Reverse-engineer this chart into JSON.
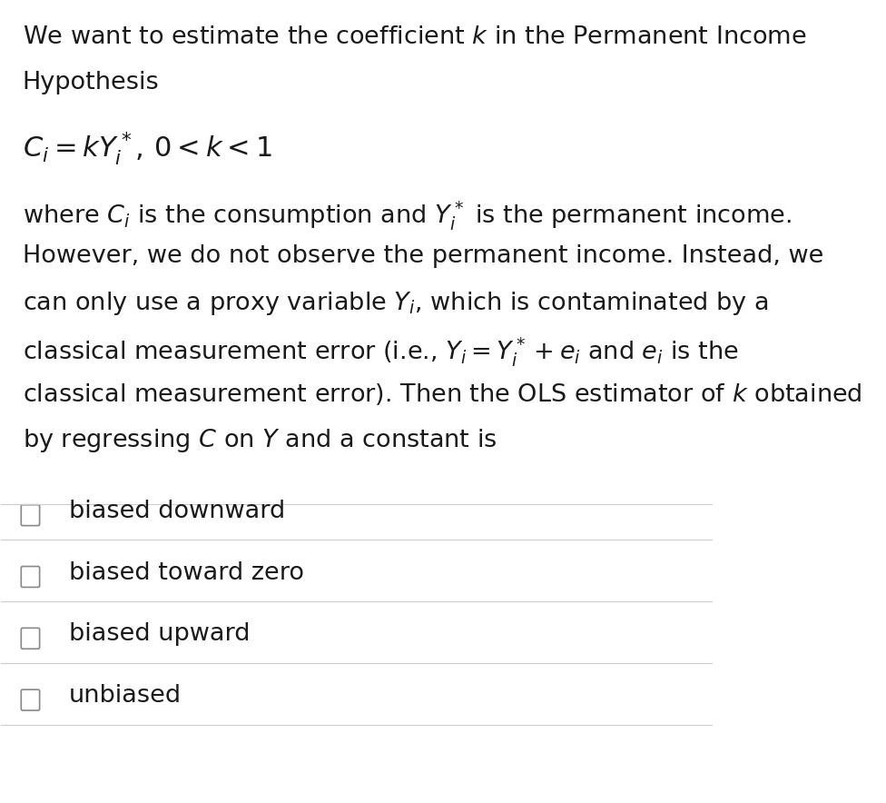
{
  "bg_color": "#ffffff",
  "text_color": "#1a1a1a",
  "fig_width": 9.76,
  "fig_height": 8.84,
  "dpi": 100,
  "equation1": "$C_i = kY_i^*,\\, 0 < k < 1$",
  "paragraph2_parts": [
    "where $C_i$ is the consumption and $Y_i^*$ is the permanent income.",
    "However, we do not observe the permanent income. Instead, we",
    "can only use a proxy variable $Y_i$, which is contaminated by a",
    "classical measurement error (i.e., $Y_i = Y_i^* + e_i$ and $e_i$ is the",
    "classical measurement error). Then the OLS estimator of $k$ obtained",
    "by regressing $C$ on $Y$ and a constant is"
  ],
  "options": [
    "biased downward",
    "biased toward zero",
    "biased upward",
    "unbiased"
  ],
  "font_size_body": 19.5,
  "font_size_equation": 22,
  "font_size_options": 19.5,
  "line_color": "#cccccc",
  "checkbox_color": "#888888"
}
